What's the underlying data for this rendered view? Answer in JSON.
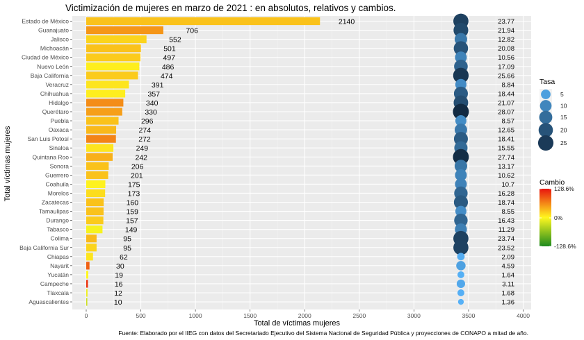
{
  "chart_data": {
    "type": "bar",
    "title": "Victimización de mujeres en marzo de 2021 : en absolutos, relativos y cambios.",
    "xlabel": "Total de víctimas mujeres",
    "ylabel": "Total víctimas mujeres",
    "caption": "Fuente: Elaborado por el IIEG con datos del Secretariado Ejecutivo del Sistema Nacional de Seguridad Pública y proyecciones de CONAPO a mitad de año.",
    "xlim": [
      0,
      4000
    ],
    "xticks": [
      0,
      500,
      1000,
      1500,
      2000,
      2500,
      3000,
      3500,
      4000
    ],
    "grid": true,
    "categories": [
      "Estado de México",
      "Guanajuato",
      "Jalisco",
      "Michoacán",
      "Ciudad de México",
      "Nuevo León",
      "Baja California",
      "Veracruz",
      "Chihuahua",
      "Hidalgo",
      "Querétaro",
      "Puebla",
      "Oaxaca",
      "San Luis Potosí",
      "Sinaloa",
      "Quintana Roo",
      "Sonora",
      "Guerrero",
      "Coahuila",
      "Morelos",
      "Zacatecas",
      "Tamaulipas",
      "Durango",
      "Tabasco",
      "Colima",
      "Baja California Sur",
      "Chiapas",
      "Nayarit",
      "Yucatán",
      "Campeche",
      "Tlaxcala",
      "Aguascalientes"
    ],
    "values": [
      2140,
      706,
      552,
      501,
      497,
      486,
      474,
      391,
      357,
      340,
      330,
      296,
      274,
      272,
      249,
      242,
      206,
      201,
      175,
      173,
      160,
      159,
      157,
      149,
      95,
      95,
      62,
      30,
      19,
      16,
      12,
      10
    ],
    "value_labels": [
      "2140",
      "706",
      "552",
      "501",
      "497",
      "486",
      "474",
      "391",
      "357",
      "340",
      "330",
      "296",
      "274",
      "272",
      "249",
      "242",
      "206",
      "201",
      "175",
      "173",
      "160",
      "159",
      "157",
      "149",
      "95",
      "95",
      "62",
      "30",
      "19",
      "16",
      "12",
      "10"
    ],
    "rates": [
      23.77,
      21.94,
      12.82,
      20.08,
      10.56,
      17.09,
      25.66,
      8.84,
      18.44,
      21.07,
      28.07,
      8.57,
      12.65,
      18.41,
      15.55,
      27.74,
      13.17,
      10.62,
      10.7,
      16.28,
      18.74,
      8.55,
      16.43,
      11.29,
      23.74,
      23.52,
      2.09,
      4.59,
      1.64,
      3.11,
      1.68,
      1.36
    ],
    "rate_labels": [
      "23.77",
      "21.94",
      "12.82",
      "20.08",
      "10.56",
      "17.09",
      "25.66",
      "8.84",
      "18.44",
      "21.07",
      "28.07",
      "8.57",
      "12.65",
      "18.41",
      "15.55",
      "27.74",
      "13.17",
      "10.62",
      "10.7",
      "16.28",
      "18.74",
      "8.55",
      "16.43",
      "11.29",
      "23.74",
      "23.52",
      "2.09",
      "4.59",
      "1.64",
      "3.11",
      "1.68",
      "1.36"
    ],
    "changes_pct": [
      30,
      55,
      20,
      30,
      25,
      5,
      25,
      10,
      5,
      60,
      50,
      30,
      35,
      65,
      10,
      40,
      30,
      30,
      3,
      15,
      30,
      30,
      25,
      -5,
      35,
      20,
      10,
      85,
      0,
      110,
      -10,
      -30
    ],
    "rate_point_x": 3430,
    "legend_size": {
      "title": "Tasa",
      "values": [
        5,
        10,
        15,
        20,
        25
      ],
      "labels": [
        "5",
        "10",
        "15",
        "20",
        "25"
      ]
    },
    "legend_color": {
      "title": "Cambio",
      "labels": [
        "128.6%",
        "0%",
        "-128.6%"
      ],
      "colors_high_to_low": [
        "#e8140f",
        "#fff71f",
        "#1e8a1e"
      ]
    },
    "colors": {
      "panel": "#ebebeb",
      "grid_major": "#ffffff",
      "point_low": "#56b1f7",
      "point_high": "#132b43"
    }
  }
}
